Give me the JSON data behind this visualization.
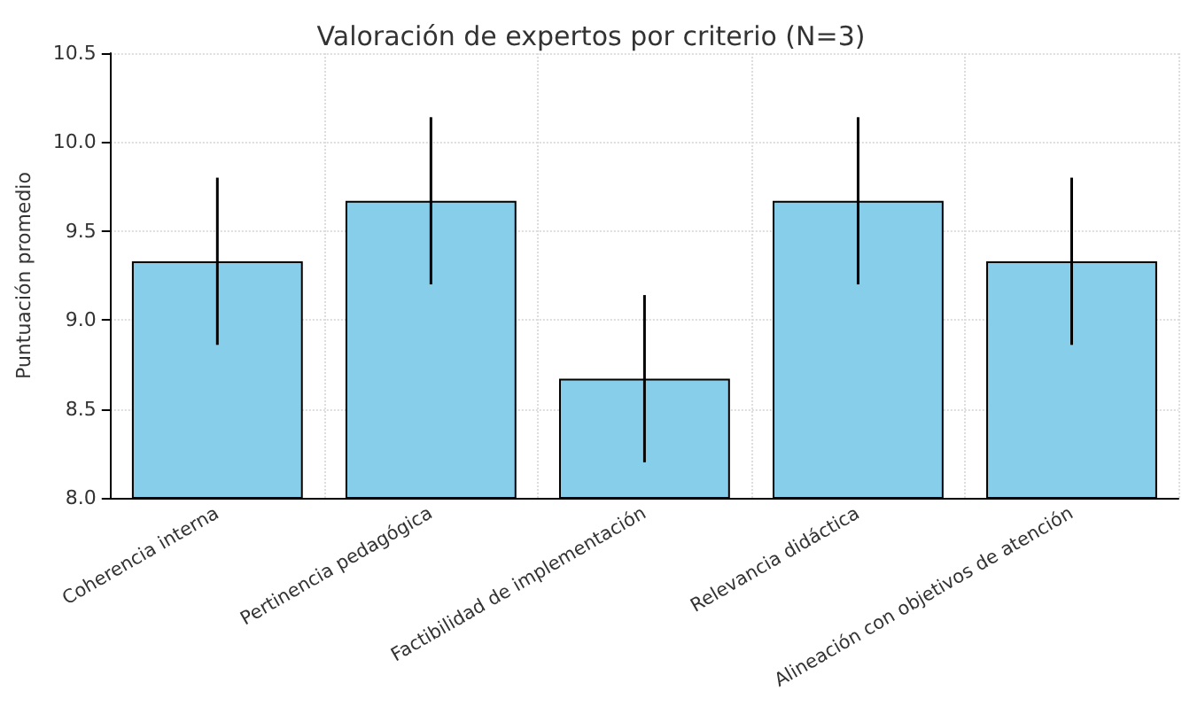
{
  "chart_data": {
    "type": "bar",
    "title": "Valoración de expertos por criterio (N=3)",
    "ylabel": "Puntuación promedio",
    "categories": [
      "Coherencia interna",
      "Pertinencia pedagógica",
      "Factibilidad de implementación",
      "Relevancia didáctica",
      "Alineación con objetivos de atención"
    ],
    "values": [
      9.33,
      9.67,
      8.67,
      9.67,
      9.33
    ],
    "errors": [
      0.47,
      0.47,
      0.47,
      0.47,
      0.47
    ],
    "color": "#87ceeb",
    "ylim": [
      8.0,
      10.5
    ],
    "yticks": [
      {
        "value": 8.0,
        "label": "8.0"
      },
      {
        "value": 8.5,
        "label": "8.5"
      },
      {
        "value": 9.0,
        "label": "9.0"
      },
      {
        "value": 9.5,
        "label": "9.5"
      },
      {
        "value": 10.0,
        "label": "10.0"
      },
      {
        "value": 10.5,
        "label": "10.5"
      }
    ],
    "grid": true
  }
}
